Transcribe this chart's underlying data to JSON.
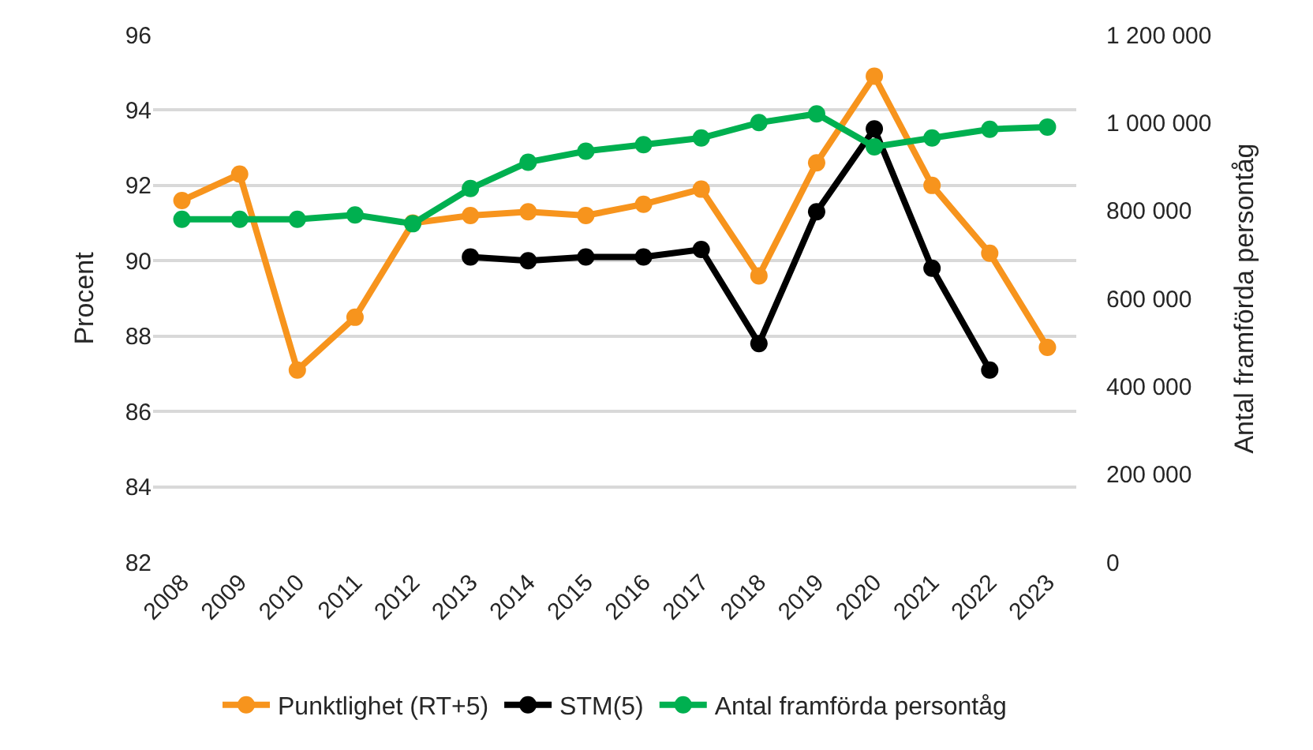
{
  "chart_data": {
    "type": "line",
    "categories": [
      "2008",
      "2009",
      "2010",
      "2011",
      "2012",
      "2013",
      "2014",
      "2015",
      "2016",
      "2017",
      "2018",
      "2019",
      "2020",
      "2021",
      "2022",
      "2023"
    ],
    "ylabel": "Procent",
    "y2label": "Antal framförda persontåg",
    "ylim": [
      82,
      96
    ],
    "yticks": [
      82,
      84,
      86,
      88,
      90,
      92,
      94,
      96
    ],
    "y2lim": [
      0,
      1200000
    ],
    "y2ticks": [
      {
        "value": 0,
        "label": "0"
      },
      {
        "value": 200000,
        "label": "200 000"
      },
      {
        "value": 400000,
        "label": "400 000"
      },
      {
        "value": 600000,
        "label": "600 000"
      },
      {
        "value": 800000,
        "label": "800 000"
      },
      {
        "value": 1000000,
        "label": "1 000 000"
      },
      {
        "value": 1200000,
        "label": "1 200 000"
      }
    ],
    "grid": "y",
    "legend": "bottom",
    "marker": "circle",
    "line_style": "solid",
    "series": [
      {
        "name": "Punktlighet (RT+5)",
        "color": "#f7941d",
        "values": [
          91.6,
          92.3,
          87.1,
          88.5,
          91.0,
          91.2,
          91.3,
          91.2,
          91.5,
          91.9,
          89.6,
          92.6,
          94.9,
          92.0,
          90.2,
          87.7
        ]
      },
      {
        "name": "STM(5)",
        "color": "#000000",
        "values": [
          null,
          null,
          null,
          null,
          null,
          90.1,
          90.0,
          90.1,
          90.1,
          90.3,
          87.8,
          91.3,
          93.5,
          89.8,
          87.1,
          null
        ]
      },
      {
        "name": "Antal framförda persontåg",
        "color": "#00b050",
        "axis": "y2",
        "values": [
          780000,
          780000,
          780000,
          790000,
          770000,
          850000,
          910000,
          935000,
          950000,
          965000,
          1000000,
          1020000,
          945000,
          965000,
          985000,
          990000
        ]
      }
    ]
  }
}
